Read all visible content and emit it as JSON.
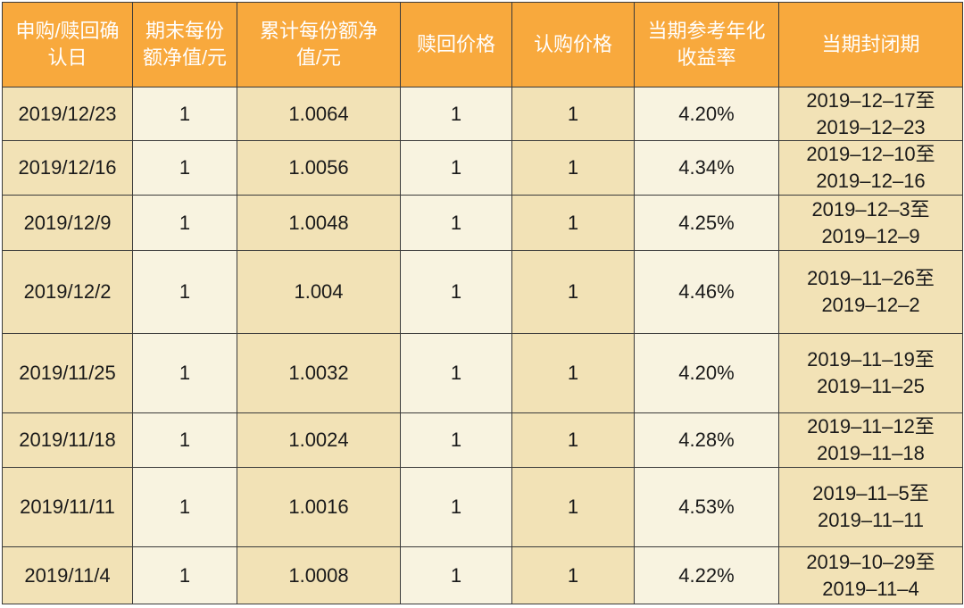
{
  "table": {
    "header": [
      [
        "申购/赎回确",
        "认日"
      ],
      [
        "期末每份",
        "额净值/元"
      ],
      [
        "累计每份额净",
        "值/元"
      ],
      [
        "赎回价格"
      ],
      [
        "认购价格"
      ],
      [
        "当期参考年化",
        "收益率"
      ],
      [
        "当期封闭期"
      ]
    ],
    "rows": [
      [
        "2019/12/23",
        "1",
        "1.0064",
        "1",
        "1",
        "4.20%",
        [
          "2019–12–17至",
          "2019–12–23"
        ]
      ],
      [
        "2019/12/16",
        "1",
        "1.0056",
        "1",
        "1",
        "4.34%",
        [
          "2019–12–10至",
          "2019–12–16"
        ]
      ],
      [
        "2019/12/9",
        "1",
        "1.0048",
        "1",
        "1",
        "4.25%",
        [
          "2019–12–3至",
          "2019–12–9"
        ]
      ],
      [
        "2019/12/2",
        "1",
        "1.004",
        "1",
        "1",
        "4.46%",
        [
          "2019–11–26至",
          "2019–12–2"
        ]
      ],
      [
        "2019/11/25",
        "1",
        "1.0032",
        "1",
        "1",
        "4.20%",
        [
          "2019–11–19至",
          "2019–11–25"
        ]
      ],
      [
        "2019/11/18",
        "1",
        "1.0024",
        "1",
        "1",
        "4.28%",
        [
          "2019–11–12至",
          "2019–11–18"
        ]
      ],
      [
        "2019/11/11",
        "1",
        "1.0016",
        "1",
        "1",
        "4.53%",
        [
          "2019–11–5至",
          "2019–11–11"
        ]
      ],
      [
        "2019/11/4",
        "1",
        "1.0008",
        "1",
        "1",
        "4.22%",
        [
          "2019–10–29至",
          "2019–11–4"
        ]
      ]
    ]
  }
}
